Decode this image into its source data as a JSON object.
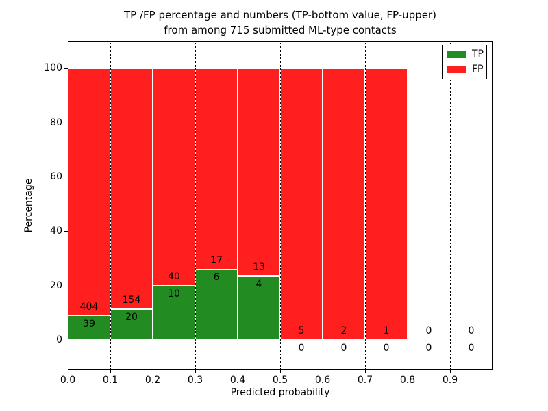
{
  "title": {
    "line1": "TP /FP percentage and numbers (TP-bottom value, FP-upper)",
    "line2": "from among 715 submitted ML-type contacts"
  },
  "chart_data": {
    "type": "bar",
    "stacked": true,
    "normalized_to_percent": true,
    "title": "TP /FP percentage and numbers (TP-bottom value, FP-upper) from among 715 submitted ML-type contacts",
    "xlabel": "Predicted probability",
    "ylabel": "Percentage",
    "total_contacts": 715,
    "bin_width": 0.1,
    "bin_starts": [
      0.0,
      0.1,
      0.2,
      0.3,
      0.4,
      0.5,
      0.6,
      0.7,
      0.8,
      0.9
    ],
    "x_tick_labels": [
      "0.0",
      "0.1",
      "0.2",
      "0.3",
      "0.4",
      "0.5",
      "0.6",
      "0.7",
      "0.8",
      "0.9"
    ],
    "y_ticks": [
      0,
      20,
      40,
      60,
      80,
      100
    ],
    "xlim": [
      0.0,
      1.0
    ],
    "ylim": [
      -11,
      110
    ],
    "grid": "dotted black, drawn above bars",
    "legend_position": "upper right",
    "series": [
      {
        "name": "TP",
        "color": "#228B22",
        "counts": [
          39,
          20,
          10,
          6,
          4,
          0,
          0,
          0,
          0,
          0
        ],
        "percent_heights": [
          8.8,
          11.49,
          20.0,
          26.09,
          23.53,
          0,
          0,
          0,
          0,
          0
        ]
      },
      {
        "name": "FP",
        "color": "#FF1F1F",
        "counts": [
          404,
          154,
          40,
          17,
          13,
          5,
          2,
          1,
          0,
          0
        ],
        "percent_heights": [
          91.2,
          88.51,
          80.0,
          73.91,
          76.47,
          100,
          100,
          100,
          0,
          0
        ]
      }
    ],
    "bar_edge_color": "#FFFFFF"
  }
}
